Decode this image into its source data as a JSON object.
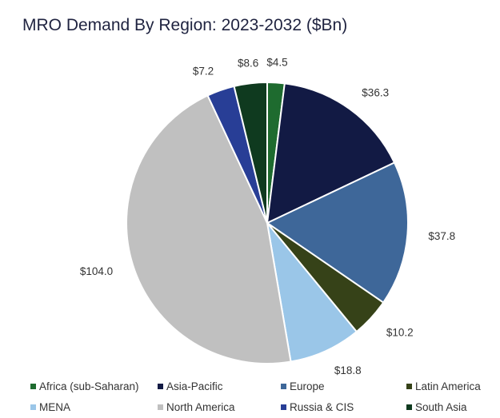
{
  "chart_data": {
    "type": "pie",
    "title": "MRO Demand By Region: 2023-2032 ($Bn)",
    "categories": [
      "Africa (sub-Saharan)",
      "Asia-Pacific",
      "Europe",
      "Latin America",
      "MENA",
      "North America",
      "Russia & CIS",
      "South Asia"
    ],
    "values": [
      4.5,
      36.3,
      37.8,
      10.2,
      18.8,
      104.0,
      7.2,
      8.6
    ],
    "labels": [
      "$4.5",
      "$36.3",
      "$37.8",
      "$10.2",
      "$18.8",
      "$104.0",
      "$7.2",
      "$8.6"
    ],
    "colors": [
      "#1e6b2f",
      "#121a44",
      "#3e6799",
      "#364218",
      "#9ac6e8",
      "#c0c0c0",
      "#283e96",
      "#0f3a1f"
    ],
    "legend_position": "bottom"
  }
}
